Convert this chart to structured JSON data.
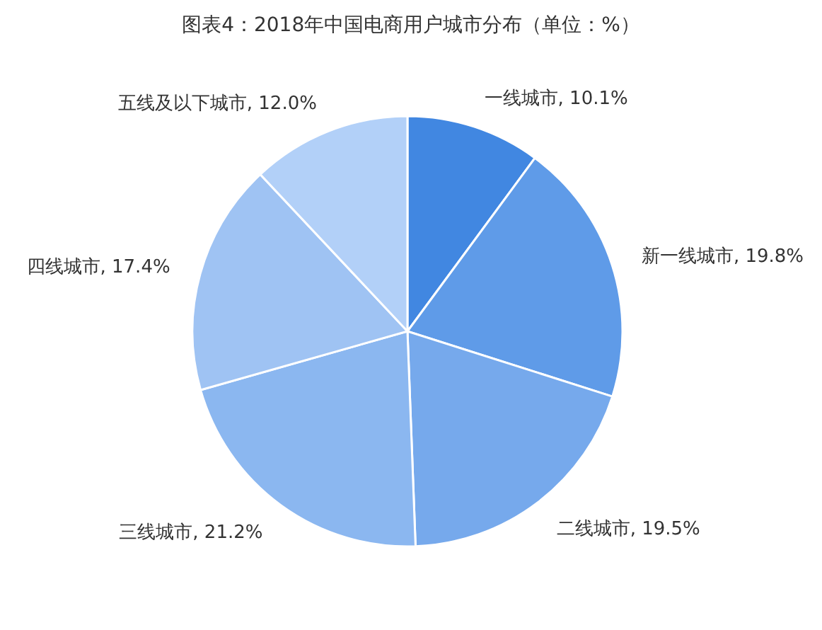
{
  "chart_data": {
    "type": "pie",
    "title": "图表4：2018年中国电商用户城市分布（单位：%）",
    "categories": [
      "一线城市",
      "新一线城市",
      "二线城市",
      "三线城市",
      "四线城市",
      "五线及以下城市"
    ],
    "value_labels": [
      "10.1%",
      "19.8%",
      "19.5%",
      "21.2%",
      "17.4%",
      "12.0%"
    ],
    "values": [
      10.1,
      19.8,
      19.5,
      21.2,
      17.4,
      12.0
    ],
    "colors": [
      "#4187e1",
      "#5f9be8",
      "#76a9ec",
      "#8bb7f0",
      "#9fc3f3",
      "#b2d0f8"
    ],
    "legend": false
  }
}
